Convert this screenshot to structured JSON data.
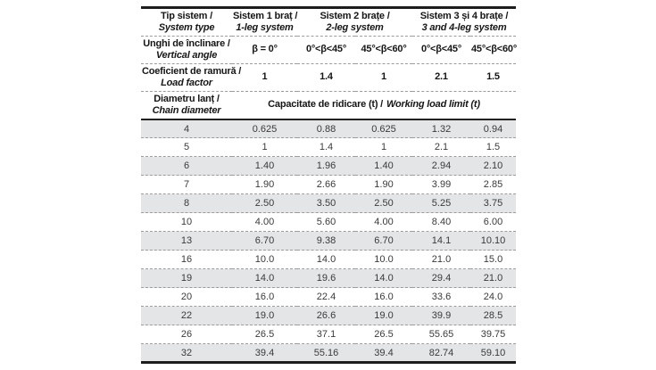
{
  "colors": {
    "row_shade": "#e4e5e7",
    "border_dark": "#1d1d1d",
    "dash_gray": "#9c9c9c",
    "header_text": "#161616",
    "data_text": "#3a3a3a"
  },
  "table": {
    "header": {
      "system_type": {
        "ro": "Tip sistem /",
        "en": "System type"
      },
      "systems": [
        {
          "ro": "Sistem 1 braț /",
          "en": "1-leg system"
        },
        {
          "ro": "Sistem 2 brațe /",
          "en": "2-leg system"
        },
        {
          "ro": "Sistem 3 și 4 brațe /",
          "en": "3 and 4-leg system"
        }
      ],
      "vertical_angle": {
        "ro": "Unghi de înclinare /",
        "en": "Vertical angle"
      },
      "angles": [
        "β = 0°",
        "0°<β<45°",
        "45°<β<60°",
        "0°<β<45°",
        "45°<β<60°"
      ],
      "load_factor": {
        "ro": "Coeficient de ramură /",
        "en": "Load factor"
      },
      "load_factors": [
        "1",
        "1.4",
        "1",
        "2.1",
        "1.5"
      ],
      "chain_diameter": {
        "ro": "Diametru lanț /",
        "en": "Chain diameter"
      },
      "capacity": {
        "ro": "Capacitate de ridicare (t) /",
        "en": "Working load limit (t)"
      }
    },
    "rows": [
      {
        "diameter": "4",
        "values": [
          "0.625",
          "0.88",
          "0.625",
          "1.32",
          "0.94"
        ]
      },
      {
        "diameter": "5",
        "values": [
          "1",
          "1.4",
          "1",
          "2.1",
          "1.5"
        ]
      },
      {
        "diameter": "6",
        "values": [
          "1.40",
          "1.96",
          "1.40",
          "2.94",
          "2.10"
        ]
      },
      {
        "diameter": "7",
        "values": [
          "1.90",
          "2.66",
          "1.90",
          "3.99",
          "2.85"
        ]
      },
      {
        "diameter": "8",
        "values": [
          "2.50",
          "3.50",
          "2.50",
          "5.25",
          "3.75"
        ]
      },
      {
        "diameter": "10",
        "values": [
          "4.00",
          "5.60",
          "4.00",
          "8.40",
          "6.00"
        ]
      },
      {
        "diameter": "13",
        "values": [
          "6.70",
          "9.38",
          "6.70",
          "14.1",
          "10.10"
        ]
      },
      {
        "diameter": "16",
        "values": [
          "10.0",
          "14.0",
          "10.0",
          "21.0",
          "15.0"
        ]
      },
      {
        "diameter": "19",
        "values": [
          "14.0",
          "19.6",
          "14.0",
          "29.4",
          "21.0"
        ]
      },
      {
        "diameter": "20",
        "values": [
          "16.0",
          "22.4",
          "16.0",
          "33.6",
          "24.0"
        ]
      },
      {
        "diameter": "22",
        "values": [
          "19.0",
          "26.6",
          "19.0",
          "39.9",
          "28.5"
        ]
      },
      {
        "diameter": "26",
        "values": [
          "26.5",
          "37.1",
          "26.5",
          "55.65",
          "39.75"
        ]
      },
      {
        "diameter": "32",
        "values": [
          "39.4",
          "55.16",
          "39.4",
          "82.74",
          "59.10"
        ]
      }
    ]
  }
}
